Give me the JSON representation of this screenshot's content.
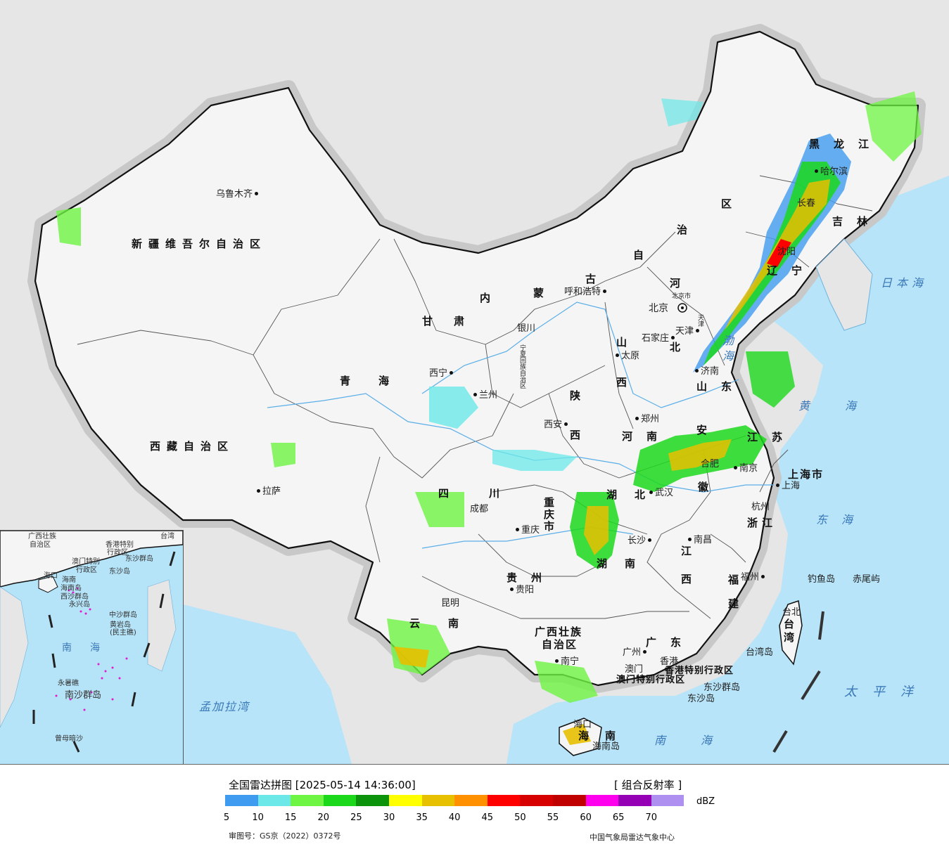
{
  "legend": {
    "title": "全国雷达拼图 [2025-05-14 14:36:00]",
    "product": "[ 组合反射率 ]",
    "unit": "dBZ",
    "approval_no": "审图号：GS京（2022）0372号",
    "issuer": "中国气象局雷达气象中心",
    "colors": [
      "#3f9bef",
      "#6ce8e8",
      "#6ef442",
      "#1bd81b",
      "#0c930c",
      "#ffff00",
      "#e7c000",
      "#ff9000",
      "#ff0000",
      "#d60000",
      "#c00000",
      "#ff00ef",
      "#9600b4",
      "#ad90f0"
    ],
    "ticks": [
      "5",
      "10",
      "15",
      "20",
      "25",
      "30",
      "35",
      "40",
      "45",
      "50",
      "55",
      "60",
      "65",
      "70"
    ]
  },
  "map": {
    "provinces": {
      "xinjiang": "新疆维吾尔自治区",
      "tibet": "西藏自治区",
      "qinghai": "青海",
      "gansu": "甘肃",
      "neimenggu_1": "内",
      "neimenggu_2": "蒙",
      "neimenggu_3": "古",
      "neimenggu_4": "自",
      "neimenggu_5": "治",
      "neimenggu_6": "区",
      "heilongjiang": "黑龙江",
      "jilin": "吉林",
      "liaoning": "辽宁",
      "hebei_1": "河",
      "hebei_2": "北",
      "shanxi_1": "山",
      "shanxi_2": "西",
      "shaanxi": "陕",
      "shaanxi_2": "西",
      "shandong": "山东",
      "henan": "河南",
      "jiangsu": "江苏",
      "anhui": "徽",
      "anhui_2": "安",
      "hubei_1": "湖",
      "hubei_2": "北",
      "hunan_1": "湖",
      "hunan_2": "南",
      "sichuan_1": "四",
      "sichuan_2": "川",
      "chongqing": "重庆市",
      "guizhou": "贵州",
      "yunnan_1": "云",
      "yunnan_2": "南",
      "guangxi_1": "广西壮族",
      "guangxi_2": "自治区",
      "guangdong": "广东",
      "jiangxi_1": "江",
      "jiangxi_2": "西",
      "zhejiang": "浙江",
      "fujian_1": "福",
      "fujian_2": "建",
      "hainan_1": "海",
      "hainan_2": "南",
      "taiwan": "台湾",
      "shanghai": "上海市",
      "ningxia": "宁夏回族自治区",
      "hk_sar": "香港特别行政区",
      "macau_sar": "澳门特别行政区"
    },
    "cities": {
      "urumqi": "乌鲁木齐",
      "lhasa": "拉萨",
      "xining": "西宁",
      "lanzhou": "兰州",
      "yinchuan": "银川",
      "hohhot": "呼和浩特",
      "beijing": "北京",
      "beijing_city": "北京市",
      "tianjin": "天津",
      "tianjin_city": "天津",
      "shijiazhuang": "石家庄",
      "taiyuan": "太原",
      "xian": "西安",
      "zhengzhou": "郑州",
      "jinan": "济南",
      "harbin": "哈尔滨",
      "changchun": "长春",
      "shenyang": "沈阳",
      "hefei": "合肥",
      "nanjing": "南京",
      "shanghai": "上海",
      "hangzhou": "杭州",
      "wuhan": "武汉",
      "changsha": "长沙",
      "nanchang": "南昌",
      "fuzhou": "福州",
      "taipei": "台北",
      "chengdu": "成都",
      "chongqing": "重庆",
      "guiyang": "贵阳",
      "kunming": "昆明",
      "nanning": "南宁",
      "guangzhou": "广州",
      "macau": "澳门",
      "hongkong": "香港",
      "haikou": "海口",
      "diaoyu": "钓鱼岛",
      "chiwei": "赤尾屿",
      "taiwan_island": "台湾岛",
      "dongsha": "东沙群岛",
      "dongsha_2": "东沙岛",
      "hainan_island": "海南岛"
    },
    "seas": {
      "japan_sea": "日本海",
      "bohai": "渤海",
      "yellow_sea": "黄海",
      "east_sea": "东海",
      "south_sea": "南海",
      "pacific": "太平洋",
      "bengal": "孟加拉湾"
    }
  },
  "inset": {
    "labels": {
      "gx": "广西壮族",
      "gx2": "自治区",
      "taiwan": "台湾",
      "hk": "香港特别",
      "hk2": "行政区",
      "macau": "澳门特别",
      "macau2": "行政区",
      "dongsha": "东沙群岛",
      "dongsha2": "东沙岛",
      "haikou": "海口",
      "hainan": "海南",
      "hainan2": "海南岛",
      "xisha": "西沙群岛",
      "yongxing": "永兴岛",
      "zhongsha": "中沙群岛",
      "huangyan": "黄岩岛",
      "huangyan2": "(民主礁)",
      "south_sea_1": "南",
      "south_sea_2": "海",
      "yongshu": "永暑礁",
      "nansha": "南沙群岛",
      "zengmu": "曾母暗沙"
    }
  }
}
